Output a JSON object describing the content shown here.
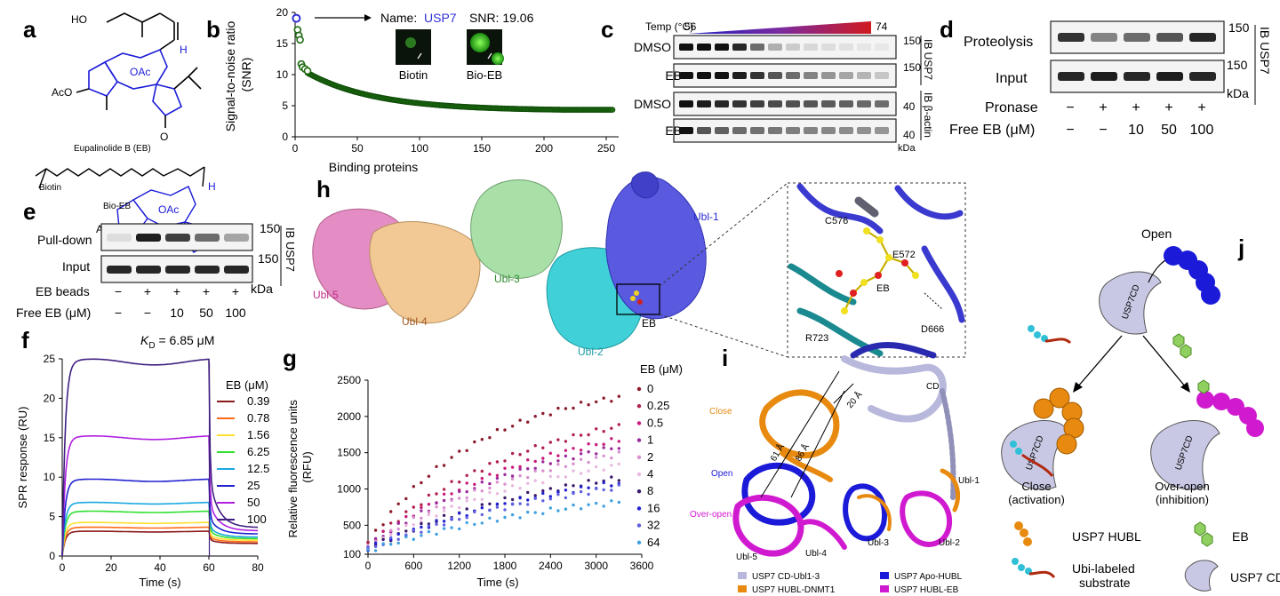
{
  "panel_labels": [
    "a",
    "b",
    "c",
    "d",
    "e",
    "f",
    "g",
    "h",
    "i",
    "j"
  ],
  "panel_a": {
    "eb_name": "Eupalinolide B (EB)",
    "bio_eb_name": "Bio-EB",
    "biotin_label": "Biotin",
    "atoms": {
      "ho": "HO",
      "oac": "OAc",
      "h": "H",
      "aco": "AcO",
      "o": "O"
    }
  },
  "panel_b": {
    "name_prefix": "Name:",
    "name_value": "USP7",
    "snr_text": "SNR: 19.06",
    "inset_left": "Biotin",
    "inset_right": "Bio-EB",
    "name_color": "#2f2fd6",
    "point_color": "#1f6b12"
  },
  "panel_c": {
    "temp_label": "Temp (°C)",
    "temp_low": "56",
    "temp_high": "74",
    "rows": [
      "DMSO",
      "EB",
      "DMSO",
      "EB"
    ],
    "mw": [
      "150",
      "150",
      "40",
      "40"
    ],
    "ib_top": "IB USP7",
    "ib_bottom": "IB β-actin",
    "kda": "kDa"
  },
  "panel_d": {
    "rows": [
      "Proteolysis",
      "Input"
    ],
    "mw": [
      "150",
      "150"
    ],
    "ib": "IB USP7",
    "kda": "kDa",
    "pronase_label": "Pronase",
    "pronase_vals": [
      "−",
      "+",
      "+",
      "+",
      "+"
    ],
    "free_eb_label": "Free EB (μM)",
    "free_eb_vals": [
      "−",
      "−",
      "10",
      "50",
      "100"
    ]
  },
  "panel_e": {
    "rows": [
      "Pull-down",
      "Input"
    ],
    "mw": [
      "150",
      "150"
    ],
    "ib": "IB USP7",
    "kda": "kDa",
    "beads_label": "EB beads",
    "beads_vals": [
      "−",
      "+",
      "+",
      "+",
      "+"
    ],
    "free_eb_label": "Free EB (μM)",
    "free_eb_vals": [
      "−",
      "−",
      "10",
      "50",
      "100"
    ]
  },
  "panel_h": {
    "domains": [
      "Ubl-5",
      "Ubl-4",
      "Ubl-3",
      "Ubl-2",
      "Ubl-1",
      "EB"
    ],
    "residues": [
      "C576",
      "E572",
      "EB",
      "D666",
      "R723"
    ]
  },
  "panel_i": {
    "labels": [
      "CD",
      "Close",
      "Open",
      "Over-open",
      "Ubl-5",
      "Ubl-4",
      "Ubl-3",
      "Ubl-2",
      "Ubl-1"
    ],
    "distances": [
      "20 Å",
      "61 Å",
      "86 Å"
    ],
    "legend": [
      "USP7 CD-Ubl1-3",
      "USP7 HUBL-DNMT1",
      "USP7 Apo-HUBL",
      "USP7 HUBL-EB"
    ],
    "legend_colors": [
      "#b8b8dc",
      "#e88a10",
      "#1a1ad8",
      "#d01ad0"
    ]
  },
  "panel_j": {
    "open": "Open",
    "close": "Close",
    "close_sub": "(activation)",
    "over_open": "Over-open",
    "over_open_sub": "(inhibition)",
    "cd_label": "USP7CD",
    "legend": [
      "USP7 HUBL",
      "EB",
      "Ubi-labeled",
      "substrate",
      "USP7 CD"
    ]
  },
  "chart_data": [
    {
      "panel": "b",
      "type": "scatter",
      "xlabel": "Binding proteins",
      "ylabel": "Signal-to-noise ratio (SNR)",
      "xlim": [
        0,
        260
      ],
      "ylim": [
        0,
        20
      ],
      "xticks": [
        0,
        50,
        100,
        150,
        200,
        250
      ],
      "yticks": [
        0,
        5,
        10,
        15,
        20
      ],
      "highlight": {
        "x": 1,
        "y": 19.06,
        "label": "USP7"
      },
      "top_points": [
        [
          1,
          19.06
        ],
        [
          2,
          17.2
        ],
        [
          3,
          16.3
        ],
        [
          4,
          15.6
        ],
        [
          5,
          11.7
        ],
        [
          6,
          11.2
        ],
        [
          8,
          10.9
        ],
        [
          10,
          10.6
        ]
      ],
      "curve": {
        "n": 255,
        "start": 10.6,
        "end": 4.35,
        "tau": 55,
        "floor": 4.2
      }
    },
    {
      "panel": "f",
      "type": "line",
      "title": "KD = 6.85 μM",
      "title_k": "K",
      "title_sub": "D",
      "title_rest": " = 6.85 μM",
      "xlabel": "Time (s)",
      "ylabel": "SPR response (RU)",
      "xlim": [
        0,
        80
      ],
      "ylim": [
        0,
        25
      ],
      "xticks": [
        0,
        20,
        40,
        60,
        80
      ],
      "yticks": [
        0,
        5,
        10,
        15,
        20,
        25
      ],
      "legend_title": "EB (μM)",
      "association_end": 60,
      "series": [
        {
          "name": "0.39",
          "color": "#8b1a1a",
          "plateau": 3.1,
          "end": 1.6
        },
        {
          "name": "0.78",
          "color": "#ff6a1a",
          "plateau": 3.6,
          "end": 1.8
        },
        {
          "name": "1.56",
          "color": "#ffe030",
          "plateau": 4.2,
          "end": 2.0
        },
        {
          "name": "6.25",
          "color": "#30e030",
          "plateau": 5.6,
          "end": 2.2
        },
        {
          "name": "12.5",
          "color": "#1aa8e0",
          "plateau": 6.7,
          "end": 2.4
        },
        {
          "name": "25",
          "color": "#2020d0",
          "plateau": 9.6,
          "end": 2.8
        },
        {
          "name": "50",
          "color": "#b020e0",
          "plateau": 15.0,
          "end": 3.2
        },
        {
          "name": "100",
          "color": "#402080",
          "plateau": 24.6,
          "end": 3.6
        }
      ]
    },
    {
      "panel": "g",
      "type": "scatter",
      "xlabel": "Time (s)",
      "ylabel": "Relative fluorescence units (RFU)",
      "xlim": [
        0,
        3600
      ],
      "ylim": [
        100,
        2500
      ],
      "xticks": [
        0,
        600,
        1200,
        1800,
        2400,
        3000,
        3600
      ],
      "yticks": [
        500,
        1000,
        1500,
        2000,
        2500
      ],
      "ytick_extra": [
        100
      ],
      "legend_title": "EB (μM)",
      "x_points": {
        "start": 0,
        "end": 3300,
        "n": 34
      },
      "series": [
        {
          "name": "0",
          "color": "#8b1a2a",
          "start": 260,
          "end": 2260,
          "tau": 1500
        },
        {
          "name": "0.25",
          "color": "#b0204a",
          "start": 230,
          "end": 1860,
          "tau": 2100
        },
        {
          "name": "0.5",
          "color": "#c81a7a",
          "start": 220,
          "end": 1680,
          "tau": 2300
        },
        {
          "name": "1",
          "color": "#9a2a9a",
          "start": 210,
          "end": 1580,
          "tau": 2400
        },
        {
          "name": "2",
          "color": "#d890d0",
          "start": 200,
          "end": 1480,
          "tau": 2500
        },
        {
          "name": "4",
          "color": "#e8b8e0",
          "start": 190,
          "end": 1330,
          "tau": 2600
        },
        {
          "name": "8",
          "color": "#3a1a6a",
          "start": 180,
          "end": 1150,
          "tau": 2800
        },
        {
          "name": "16",
          "color": "#2020d0",
          "start": 175,
          "end": 1080,
          "tau": 2800
        },
        {
          "name": "32",
          "color": "#6060e0",
          "start": 170,
          "end": 1020,
          "tau": 2900
        },
        {
          "name": "64",
          "color": "#40a0e0",
          "start": 150,
          "end": 820,
          "tau": 3000
        }
      ]
    }
  ]
}
